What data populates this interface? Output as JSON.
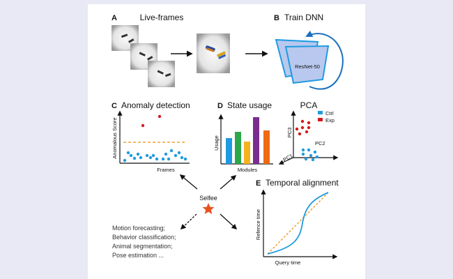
{
  "panels": {
    "a": {
      "letter": "A",
      "title": "Live-frames"
    },
    "b": {
      "letter": "B",
      "title": "Train DNN",
      "network": "ResNet-50"
    },
    "c": {
      "letter": "C",
      "title": "Anomaly detection",
      "xlabel": "Frames",
      "ylabel": "Anomalous Score"
    },
    "d": {
      "letter": "D",
      "title": "State usage",
      "xlabel": "Modules",
      "ylabel": "Usage"
    },
    "pca": {
      "title": "PCA",
      "axes": [
        "PC1",
        "PC2",
        "PC3"
      ],
      "legend": [
        {
          "label": "Ctrl",
          "color": "#1e9be0"
        },
        {
          "label": "Exp",
          "color": "#d7191c"
        }
      ]
    },
    "e": {
      "letter": "E",
      "title": "Temporal alignment",
      "xlabel": "Query time",
      "ylabel": "Refence time"
    }
  },
  "center": {
    "label": "Selfee",
    "icon": "star-icon",
    "color": "#e8521e"
  },
  "applications": [
    "Motion forecasting;",
    "Behavior classification;",
    "Animal segmentation;",
    "Pose estimation ..."
  ],
  "colors": {
    "blue": "#1e9be0",
    "red": "#d7191c",
    "orange_dash": "#f0a030",
    "bars": [
      "#1e9be0",
      "#2ca84a",
      "#f5b21f",
      "#7b2d8e",
      "#ef6a12"
    ]
  }
}
